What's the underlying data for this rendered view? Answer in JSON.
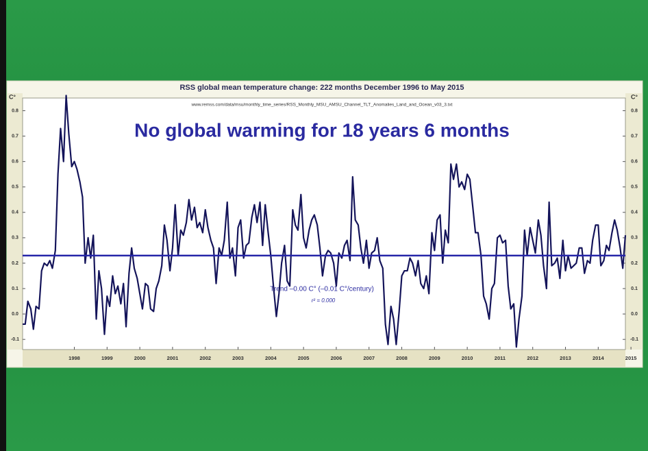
{
  "chart_data": {
    "type": "line",
    "title": "RSS global mean temperature change: 222 months December 1996 to May 2015",
    "subtitle": "www.remss.com/data/msu/monthly_time_series/RSS_Monthly_MSU_AMSU_Channel_TLT_Anomalies_Land_and_Ocean_v03_3.txt",
    "headline": "No global warming for 18 years 6 months",
    "trend_label": "Trend –0.00 C° (–0.01 C°/century)",
    "r2_label": "r² = 0.000",
    "y_unit": "C°",
    "xlim": [
      1996.92,
      2015.33
    ],
    "ylim": [
      -0.14,
      0.85
    ],
    "yticks": [
      -0.1,
      {
        "value": 0,
        "label": "0.0"
      },
      0.1,
      0.2,
      0.3,
      0.4,
      0.5,
      0.6,
      0.7,
      0.8
    ],
    "xticks": [
      {
        "value": 1998.5,
        "label": "1998"
      },
      {
        "value": 1999.5,
        "label": "1999"
      },
      {
        "value": 2000.5,
        "label": "2000"
      },
      {
        "value": 2001.5,
        "label": "2001"
      },
      {
        "value": 2002.5,
        "label": "2002"
      },
      {
        "value": 2003.5,
        "label": "2003"
      },
      {
        "value": 2004.5,
        "label": "2004"
      },
      {
        "value": 2005.5,
        "label": "2005"
      },
      {
        "value": 2006.5,
        "label": "2006"
      },
      {
        "value": 2007.5,
        "label": "2007"
      },
      {
        "value": 2008.5,
        "label": "2008"
      },
      {
        "value": 2009.5,
        "label": "2009"
      },
      {
        "value": 2010.5,
        "label": "2010"
      },
      {
        "value": 2011.5,
        "label": "2011"
      },
      {
        "value": 2012.5,
        "label": "2012"
      },
      {
        "value": 2013.5,
        "label": "2013"
      },
      {
        "value": 2014.5,
        "label": "2014"
      },
      {
        "value": 2015.5,
        "label": "2015"
      }
    ],
    "x": [
      1996.92,
      1997.0,
      1997.08,
      1997.17,
      1997.25,
      1997.33,
      1997.42,
      1997.5,
      1997.58,
      1997.67,
      1997.75,
      1997.83,
      1997.92,
      1998.0,
      1998.08,
      1998.17,
      1998.25,
      1998.33,
      1998.42,
      1998.5,
      1998.58,
      1998.67,
      1998.75,
      1998.83,
      1998.92,
      1999.0,
      1999.08,
      1999.17,
      1999.25,
      1999.33,
      1999.42,
      1999.5,
      1999.58,
      1999.67,
      1999.75,
      1999.83,
      1999.92,
      2000.0,
      2000.08,
      2000.17,
      2000.25,
      2000.33,
      2000.42,
      2000.5,
      2000.58,
      2000.67,
      2000.75,
      2000.83,
      2000.92,
      2001.0,
      2001.08,
      2001.17,
      2001.25,
      2001.33,
      2001.42,
      2001.5,
      2001.58,
      2001.67,
      2001.75,
      2001.83,
      2001.92,
      2002.0,
      2002.08,
      2002.17,
      2002.25,
      2002.33,
      2002.42,
      2002.5,
      2002.58,
      2002.67,
      2002.75,
      2002.83,
      2002.92,
      2003.0,
      2003.08,
      2003.17,
      2003.25,
      2003.33,
      2003.42,
      2003.5,
      2003.58,
      2003.67,
      2003.75,
      2003.83,
      2003.92,
      2004.0,
      2004.08,
      2004.17,
      2004.25,
      2004.33,
      2004.42,
      2004.5,
      2004.58,
      2004.67,
      2004.75,
      2004.83,
      2004.92,
      2005.0,
      2005.08,
      2005.17,
      2005.25,
      2005.33,
      2005.42,
      2005.5,
      2005.58,
      2005.67,
      2005.75,
      2005.83,
      2005.92,
      2006.0,
      2006.08,
      2006.17,
      2006.25,
      2006.33,
      2006.42,
      2006.5,
      2006.58,
      2006.67,
      2006.75,
      2006.83,
      2006.92,
      2007.0,
      2007.08,
      2007.17,
      2007.25,
      2007.33,
      2007.42,
      2007.5,
      2007.58,
      2007.67,
      2007.75,
      2007.83,
      2007.92,
      2008.0,
      2008.08,
      2008.17,
      2008.25,
      2008.33,
      2008.42,
      2008.5,
      2008.58,
      2008.67,
      2008.75,
      2008.83,
      2008.92,
      2009.0,
      2009.08,
      2009.17,
      2009.25,
      2009.33,
      2009.42,
      2009.5,
      2009.58,
      2009.67,
      2009.75,
      2009.83,
      2009.92,
      2010.0,
      2010.08,
      2010.17,
      2010.25,
      2010.33,
      2010.42,
      2010.5,
      2010.58,
      2010.67,
      2010.75,
      2010.83,
      2010.92,
      2011.0,
      2011.08,
      2011.17,
      2011.25,
      2011.33,
      2011.42,
      2011.5,
      2011.58,
      2011.67,
      2011.75,
      2011.83,
      2011.92,
      2012.0,
      2012.08,
      2012.17,
      2012.25,
      2012.33,
      2012.42,
      2012.5,
      2012.58,
      2012.67,
      2012.75,
      2012.83,
      2012.92,
      2013.0,
      2013.08,
      2013.17,
      2013.25,
      2013.33,
      2013.42,
      2013.5,
      2013.58,
      2013.67,
      2013.75,
      2013.83,
      2013.92,
      2014.0,
      2014.08,
      2014.17,
      2014.25,
      2014.33,
      2014.42,
      2014.5,
      2014.58,
      2014.67,
      2014.75,
      2014.83,
      2014.92,
      2015.0,
      2015.08,
      2015.17,
      2015.25,
      2015.33
    ],
    "series": [
      {
        "color": "#14145a",
        "values": [
          -0.04,
          -0.04,
          0.05,
          0.02,
          -0.06,
          0.03,
          0.02,
          0.17,
          0.2,
          0.19,
          0.21,
          0.18,
          0.25,
          0.55,
          0.73,
          0.6,
          0.86,
          0.71,
          0.58,
          0.6,
          0.57,
          0.52,
          0.46,
          0.2,
          0.3,
          0.22,
          0.31,
          -0.02,
          0.17,
          0.1,
          -0.08,
          0.07,
          0.03,
          0.15,
          0.08,
          0.11,
          0.04,
          0.12,
          -0.05,
          0.16,
          0.26,
          0.18,
          0.14,
          0.08,
          0.02,
          0.12,
          0.11,
          0.02,
          0.01,
          0.1,
          0.13,
          0.19,
          0.35,
          0.29,
          0.17,
          0.26,
          0.43,
          0.23,
          0.33,
          0.31,
          0.36,
          0.45,
          0.37,
          0.42,
          0.34,
          0.36,
          0.32,
          0.41,
          0.34,
          0.29,
          0.26,
          0.12,
          0.26,
          0.23,
          0.29,
          0.44,
          0.22,
          0.26,
          0.15,
          0.34,
          0.37,
          0.22,
          0.27,
          0.28,
          0.38,
          0.43,
          0.36,
          0.44,
          0.27,
          0.43,
          0.32,
          0.23,
          0.11,
          -0.01,
          0.08,
          0.2,
          0.27,
          0.13,
          0.11,
          0.41,
          0.35,
          0.33,
          0.47,
          0.3,
          0.26,
          0.33,
          0.37,
          0.39,
          0.35,
          0.26,
          0.15,
          0.23,
          0.25,
          0.24,
          0.2,
          0.11,
          0.24,
          0.22,
          0.27,
          0.29,
          0.21,
          0.54,
          0.37,
          0.35,
          0.26,
          0.2,
          0.29,
          0.18,
          0.24,
          0.25,
          0.3,
          0.21,
          0.18,
          -0.04,
          -0.12,
          0.03,
          -0.02,
          -0.12,
          0.01,
          0.15,
          0.17,
          0.17,
          0.22,
          0.2,
          0.15,
          0.21,
          0.12,
          0.1,
          0.15,
          0.08,
          0.32,
          0.25,
          0.37,
          0.39,
          0.2,
          0.33,
          0.28,
          0.59,
          0.53,
          0.59,
          0.5,
          0.52,
          0.49,
          0.55,
          0.53,
          0.42,
          0.32,
          0.32,
          0.23,
          0.07,
          0.04,
          -0.02,
          0.1,
          0.12,
          0.3,
          0.31,
          0.28,
          0.29,
          0.11,
          0.02,
          0.04,
          -0.13,
          -0.02,
          0.07,
          0.33,
          0.23,
          0.34,
          0.29,
          0.24,
          0.37,
          0.31,
          0.19,
          0.1,
          0.44,
          0.19,
          0.2,
          0.22,
          0.14,
          0.29,
          0.17,
          0.23,
          0.18,
          0.19,
          0.2,
          0.26,
          0.26,
          0.16,
          0.21,
          0.2,
          0.29,
          0.35,
          0.35,
          0.19,
          0.21,
          0.27,
          0.25,
          0.32,
          0.37,
          0.33,
          0.26,
          0.18,
          0.31
        ]
      }
    ],
    "trend": {
      "color": "#2424a8",
      "x": [
        1996.92,
        2015.33
      ],
      "values": [
        0.23,
        0.23
      ]
    }
  }
}
